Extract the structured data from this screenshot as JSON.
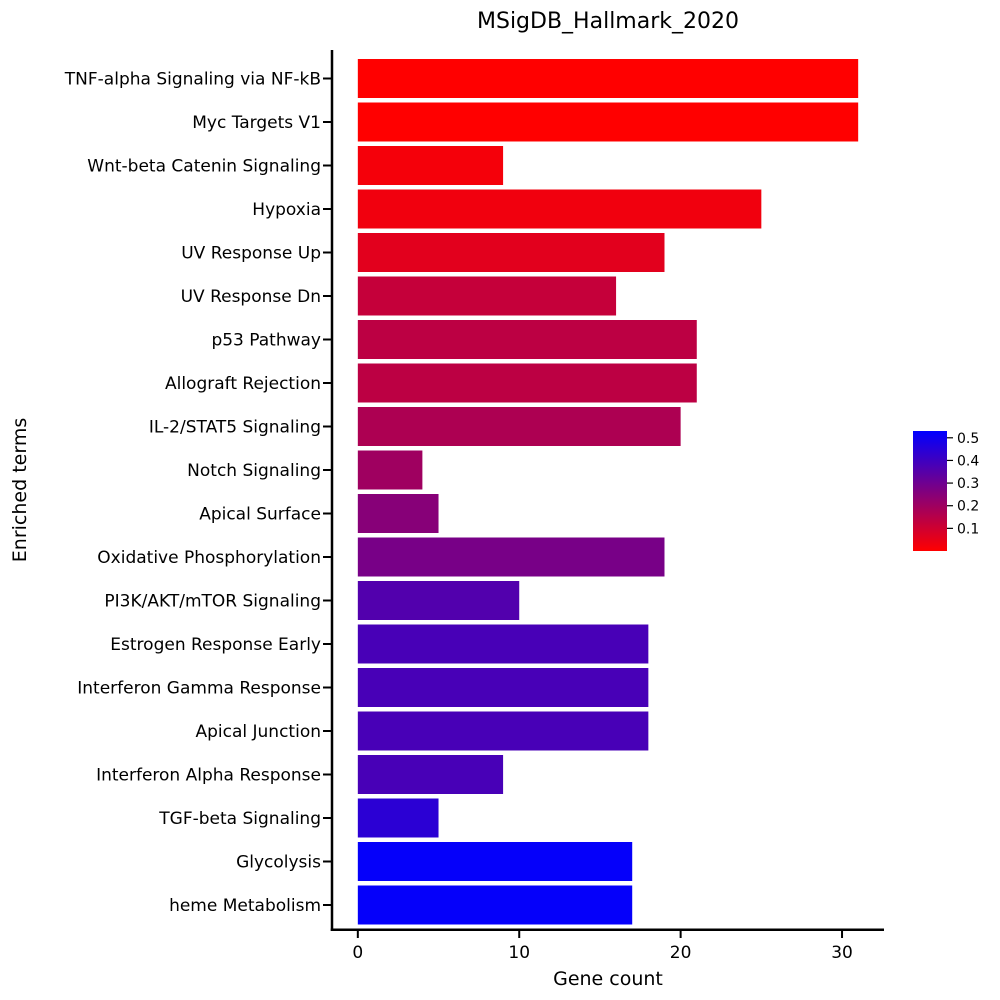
{
  "chart_data": {
    "type": "bar",
    "orientation": "horizontal",
    "title": "MSigDB_Hallmark_2020",
    "xlabel": "Gene count",
    "ylabel": "Enriched terms",
    "xlim": [
      -1.6,
      32.6
    ],
    "xticks": [
      0,
      10,
      20,
      30
    ],
    "grid": false,
    "categories": [
      "TNF-alpha Signaling via NF-kB",
      "Myc Targets V1",
      "Wnt-beta Catenin Signaling",
      "Hypoxia",
      "UV Response Up",
      "UV Response Dn",
      "p53 Pathway",
      "Allograft Rejection",
      "IL-2/STAT5 Signaling",
      "Notch Signaling",
      "Apical Surface",
      "Oxidative Phosphorylation",
      "PI3K/AKT/mTOR  Signaling",
      "Estrogen Response Early",
      "Interferon Gamma Response",
      "Apical Junction",
      "Interferon Alpha Response",
      "TGF-beta Signaling",
      "Glycolysis",
      "heme Metabolism"
    ],
    "values": [
      31,
      31,
      9,
      25,
      19,
      16,
      21,
      21,
      20,
      4,
      5,
      19,
      10,
      18,
      18,
      18,
      9,
      5,
      17,
      17
    ],
    "color_values": [
      0.0,
      0.0,
      0.02,
      0.03,
      0.06,
      0.12,
      0.14,
      0.14,
      0.17,
      0.2,
      0.25,
      0.28,
      0.36,
      0.38,
      0.38,
      0.38,
      0.38,
      0.44,
      0.52,
      0.52
    ],
    "colorbar": {
      "ticks": [
        0.1,
        0.2,
        0.3,
        0.4,
        0.5
      ],
      "range": [
        0.0,
        0.53
      ],
      "low_color": "#ff0000",
      "high_color": "#0000ff",
      "placement": "right"
    }
  }
}
